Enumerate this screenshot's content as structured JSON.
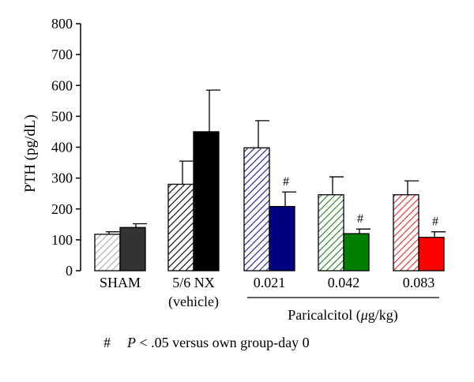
{
  "chart_data": {
    "type": "bar",
    "ylabel": "PTH (pg/dL)",
    "ylim": [
      0,
      800
    ],
    "yticks": [
      0,
      100,
      200,
      300,
      400,
      500,
      600,
      700,
      800
    ],
    "grid": false,
    "groups": [
      {
        "label": "SHAM",
        "label_line2": "",
        "bars": [
          {
            "value": 118,
            "error": 8,
            "color": "#aaaaaa",
            "pattern": "hatch",
            "mark": ""
          },
          {
            "value": 140,
            "error": 12,
            "color": "#333333",
            "pattern": "solid",
            "mark": ""
          }
        ]
      },
      {
        "label": "5/6 NX",
        "label_line2": "(vehicle)",
        "bars": [
          {
            "value": 280,
            "error": 75,
            "color": "#000000",
            "pattern": "hatch",
            "mark": ""
          },
          {
            "value": 450,
            "error": 135,
            "color": "#000000",
            "pattern": "solid",
            "mark": ""
          }
        ]
      },
      {
        "label": "0.021",
        "label_line2": "",
        "bars": [
          {
            "value": 398,
            "error": 88,
            "color": "#1a1a8c",
            "pattern": "hatch",
            "mark": ""
          },
          {
            "value": 208,
            "error": 47,
            "color": "#000080",
            "pattern": "solid",
            "mark": "#"
          }
        ]
      },
      {
        "label": "0.042",
        "label_line2": "",
        "bars": [
          {
            "value": 246,
            "error": 58,
            "color": "#1e7a1e",
            "pattern": "hatch",
            "mark": ""
          },
          {
            "value": 120,
            "error": 15,
            "color": "#008000",
            "pattern": "solid",
            "mark": "#"
          }
        ]
      },
      {
        "label": "0.083",
        "label_line2": "",
        "bars": [
          {
            "value": 246,
            "error": 45,
            "color": "#e03030",
            "pattern": "hatch",
            "mark": ""
          },
          {
            "value": 108,
            "error": 18,
            "color": "#ff0000",
            "pattern": "solid",
            "mark": "#"
          }
        ]
      }
    ],
    "bracket_label": "Paricalcitol (",
    "bracket_label_unit_mu": "μ",
    "bracket_label_unit_rest": "g/kg)"
  },
  "footnote": {
    "symbol": "#",
    "p": "P",
    "text": " < .05 versus own group-day 0"
  }
}
